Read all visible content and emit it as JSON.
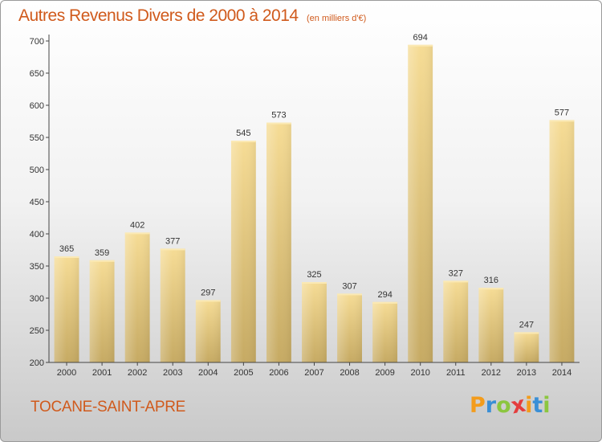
{
  "header": {
    "title": "Autres Revenus Divers de 2000 à 2014",
    "unit": "(en milliers d'€)"
  },
  "footer": {
    "commune": "TOCANE-SAINT-APRE",
    "logo_letters": [
      "P",
      "r",
      "o",
      "x",
      "i",
      "t",
      "i"
    ],
    "logo_colors": [
      "#f39c1c",
      "#3a8fd6",
      "#8cc63f",
      "#e43d3d",
      "#f39c1c",
      "#3a8fd6",
      "#8cc63f"
    ]
  },
  "chart_data": {
    "type": "bar",
    "title": "Autres Revenus Divers de 2000 à 2014",
    "subtitle": "(en milliers d'€)",
    "xlabel": "",
    "ylabel": "",
    "categories": [
      "2000",
      "2001",
      "2002",
      "2003",
      "2004",
      "2005",
      "2006",
      "2007",
      "2008",
      "2009",
      "2010",
      "2011",
      "2012",
      "2013",
      "2014"
    ],
    "values": [
      365,
      359,
      402,
      377,
      297,
      545,
      573,
      325,
      307,
      294,
      694,
      327,
      316,
      247,
      577
    ],
    "ylim": [
      200,
      700
    ],
    "yticks": [
      200,
      250,
      300,
      350,
      400,
      450,
      500,
      550,
      600,
      650,
      700
    ],
    "grid": false,
    "legend": "none",
    "bar_color": "#e8c97a"
  }
}
